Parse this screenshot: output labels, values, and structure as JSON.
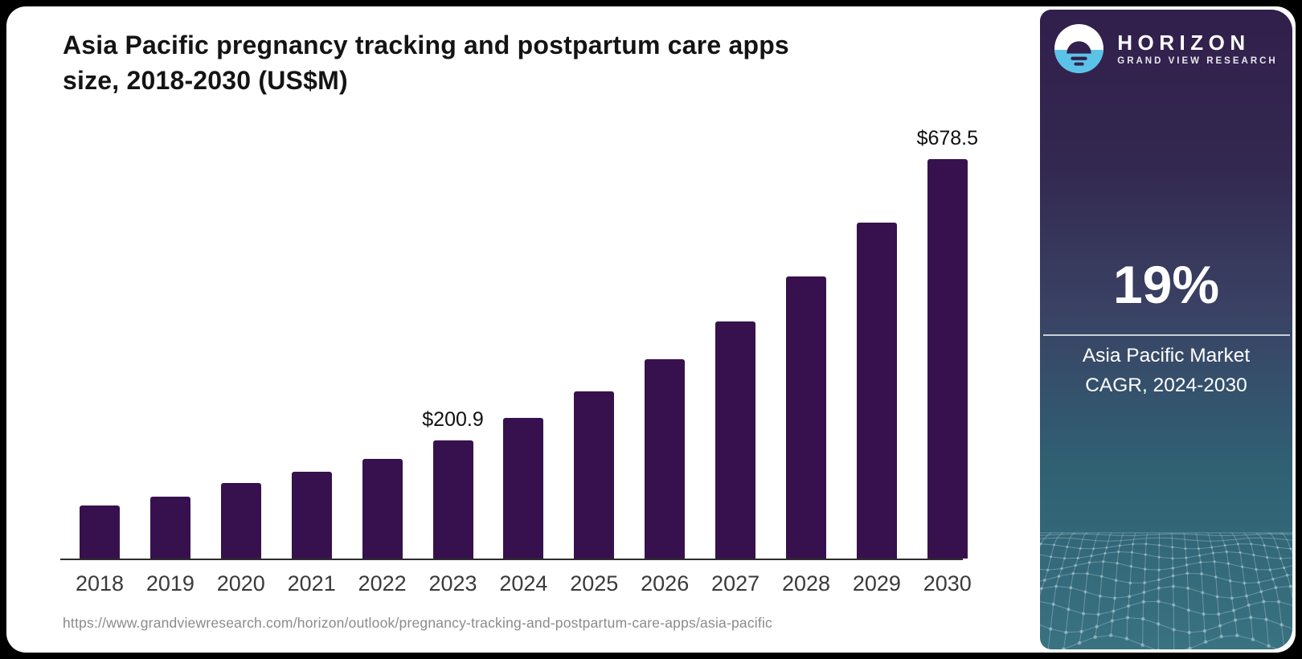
{
  "header": {
    "title_line1": "Asia Pacific pregnancy tracking and postpartum care apps",
    "title_line2": "size, 2018-2030 (US$M)"
  },
  "chart_data": {
    "type": "bar",
    "title": "Asia Pacific pregnancy tracking and postpartum care apps size, 2018-2030 (US$M)",
    "unit": "US$M",
    "categories": [
      "2018",
      "2019",
      "2020",
      "2021",
      "2022",
      "2023",
      "2024",
      "2025",
      "2026",
      "2027",
      "2028",
      "2029",
      "2030"
    ],
    "values": [
      90.1,
      105.2,
      128.3,
      147.4,
      169.3,
      200.9,
      238.9,
      284.3,
      338.3,
      402.6,
      479.1,
      570.1,
      678.5
    ],
    "annotations": [
      {
        "category": "2023",
        "text": "$200.9"
      },
      {
        "category": "2030",
        "text": "$678.5"
      }
    ],
    "xlabel": "",
    "ylabel": "",
    "ylim": [
      0,
      700
    ],
    "grid": false,
    "legend": false,
    "bar_color": "#37114d"
  },
  "footer": {
    "source_url": "https://www.grandviewresearch.com/horizon/outlook/pregnancy-tracking-and-postpartum-care-apps/asia-pacific"
  },
  "sidebar": {
    "brand_name": "HORIZON",
    "brand_subtitle": "GRAND VIEW RESEARCH",
    "cagr_value": "19%",
    "caption_line1": "Asia Pacific Market",
    "caption_line2": "CAGR, 2024-2030",
    "colors": {
      "logo_blue": "#5bc3e8",
      "panel_top": "#311f4c",
      "panel_bottom": "#397281"
    }
  }
}
